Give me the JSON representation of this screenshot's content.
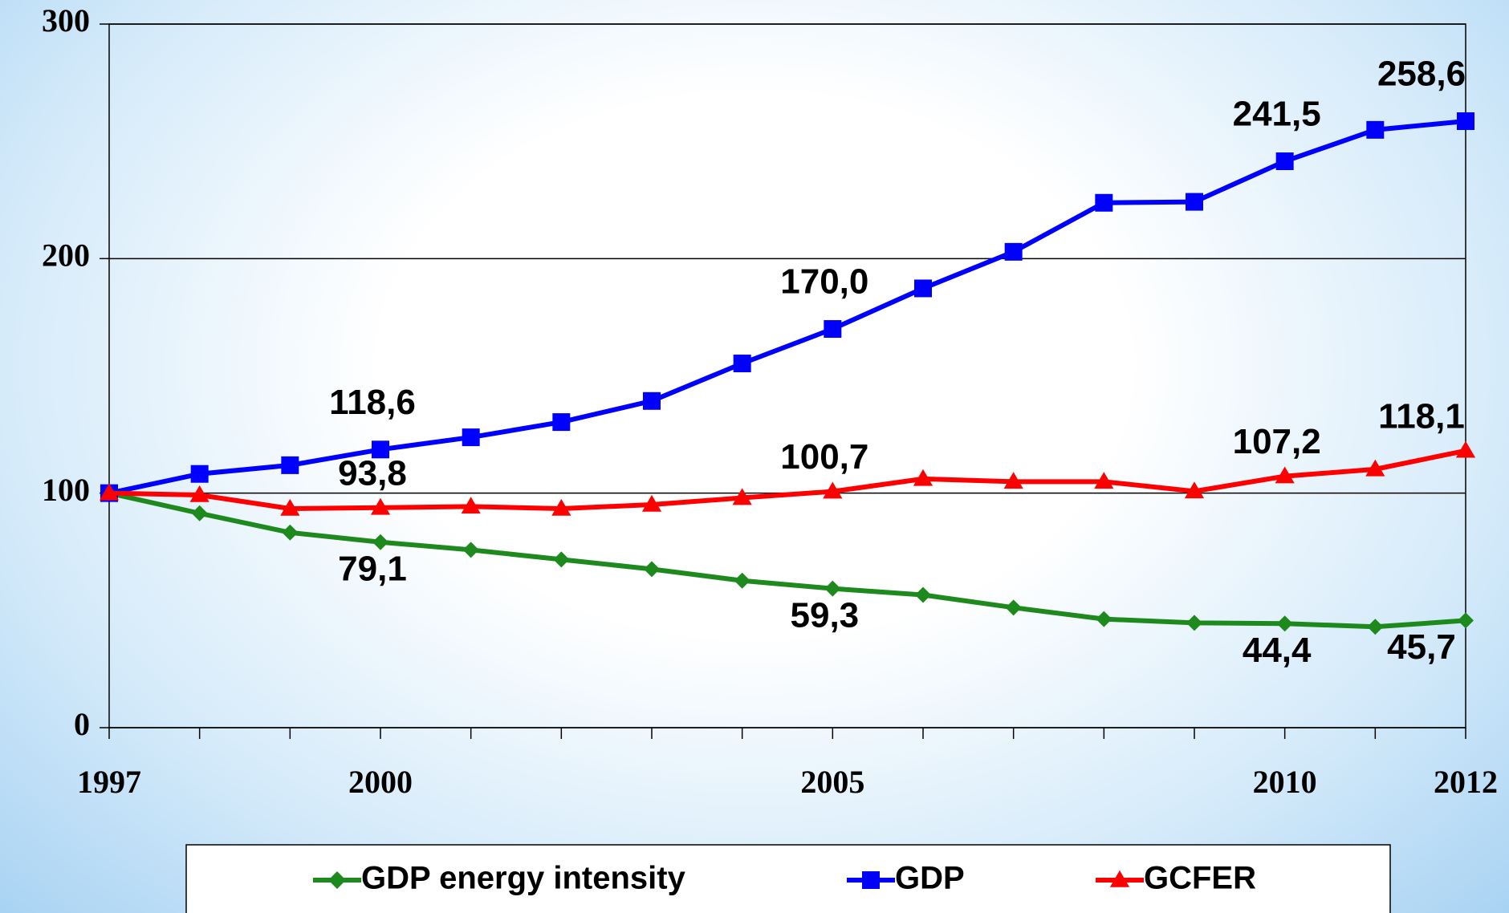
{
  "chart_data": {
    "type": "line",
    "x": [
      1997,
      1998,
      1999,
      2000,
      2001,
      2002,
      2003,
      2004,
      2005,
      2006,
      2007,
      2008,
      2009,
      2010,
      2011,
      2012
    ],
    "xlim": [
      1997,
      2012
    ],
    "xticks": [
      1997,
      2000,
      2005,
      2010,
      2012
    ],
    "ylim": [
      0,
      300
    ],
    "yticks": [
      0,
      100,
      200,
      300
    ],
    "grid": true,
    "legend": "bottom",
    "series": [
      {
        "name": "GDP energy intensity",
        "color": "#1e8a1e",
        "marker": "diamond",
        "values": [
          100,
          91.4,
          83.2,
          79.1,
          75.8,
          71.7,
          67.6,
          62.7,
          59.3,
          56.6,
          51.2,
          46.3,
          44.7,
          44.4,
          43.0,
          45.7
        ],
        "value_labels": [
          null,
          null,
          null,
          "79,1",
          null,
          null,
          null,
          null,
          "59,3",
          null,
          null,
          null,
          null,
          "44,4",
          null,
          "45,7"
        ]
      },
      {
        "name": "GDP",
        "color": "#0000ff",
        "marker": "square",
        "values": [
          100,
          108.2,
          111.9,
          118.6,
          123.8,
          130.3,
          139.3,
          155.3,
          170.0,
          187.3,
          202.9,
          223.8,
          224.2,
          241.5,
          254.9,
          258.6
        ],
        "value_labels": [
          null,
          null,
          null,
          "118,6",
          null,
          null,
          null,
          null,
          "170,0",
          null,
          null,
          null,
          null,
          "241,5",
          null,
          "258,6"
        ]
      },
      {
        "name": "GCFER",
        "color": "#ff0000",
        "marker": "triangle",
        "values": [
          100,
          99.2,
          93.4,
          93.8,
          94.3,
          93.4,
          95.1,
          98.0,
          100.7,
          106.1,
          104.9,
          104.9,
          100.8,
          107.2,
          110.2,
          118.1
        ],
        "value_labels": [
          null,
          null,
          null,
          "93,8",
          null,
          null,
          null,
          null,
          "100,7",
          null,
          null,
          null,
          null,
          "107,2",
          null,
          "118,1"
        ]
      }
    ]
  }
}
